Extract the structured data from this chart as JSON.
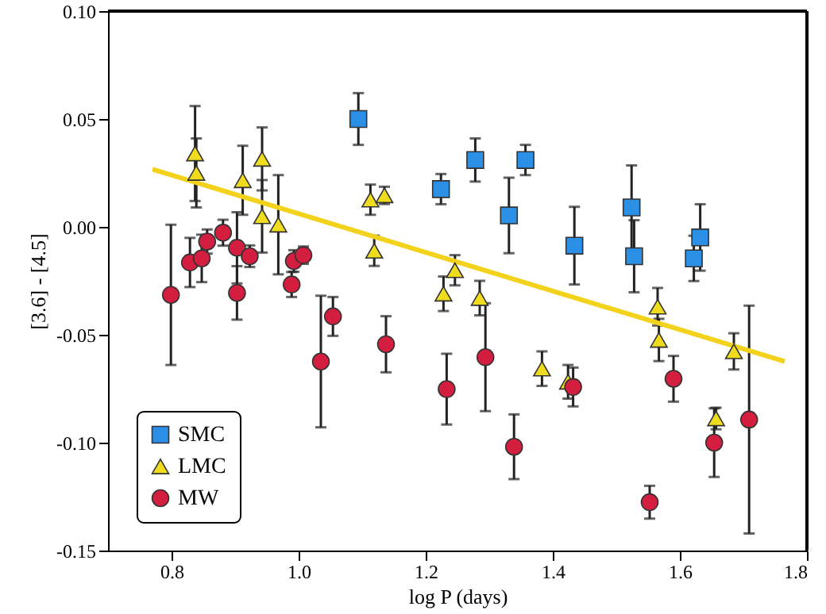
{
  "chart_data": {
    "type": "scatter",
    "xlabel": "log P (days)",
    "ylabel": "[3.6] - [4.5]",
    "xlim": [
      0.7,
      1.8
    ],
    "ylim": [
      -0.15,
      0.1
    ],
    "xticks": [
      {
        "value": 0.8,
        "label": "0.8"
      },
      {
        "value": 1.0,
        "label": "1.0"
      },
      {
        "value": 1.2,
        "label": "1.2"
      },
      {
        "value": 1.4,
        "label": "1.4"
      },
      {
        "value": 1.6,
        "label": "1.6"
      },
      {
        "value": 1.8,
        "label": "1.8"
      }
    ],
    "yticks": [
      {
        "value": -0.15,
        "label": "-0.15"
      },
      {
        "value": -0.1,
        "label": "-0.10"
      },
      {
        "value": -0.05,
        "label": "-0.05"
      },
      {
        "value": 0,
        "label": "0.00"
      },
      {
        "value": 0.05,
        "label": "0.05"
      },
      {
        "value": 0.1,
        "label": "0.10"
      }
    ],
    "grid": false,
    "legend": "bottom left",
    "series": [
      {
        "name": "SMC",
        "marker": "square",
        "color": "#2b8fe6",
        "x": [
          1.094,
          1.224,
          1.278,
          1.357,
          1.331,
          1.434,
          1.524,
          1.528,
          1.622,
          1.632
        ],
        "values": [
          0.05,
          0.0175,
          0.031,
          0.031,
          0.0053,
          -0.0087,
          0.009,
          -0.0136,
          -0.0146,
          -0.0049
        ],
        "errors": [
          0.012,
          0.007,
          0.01,
          0.007,
          0.0175,
          0.018,
          0.0195,
          0.0167,
          0.0105,
          0.0154
        ]
      },
      {
        "name": "LMC",
        "marker": "triangle",
        "color": "#f0dc1e",
        "x": [
          0.837,
          0.839,
          0.912,
          0.9425,
          0.9425,
          0.968,
          1.113,
          1.135,
          1.119,
          1.246,
          1.228,
          1.285,
          1.383,
          1.424,
          1.565,
          1.567,
          1.685,
          1.657
        ],
        "values": [
          0.034,
          0.025,
          0.0216,
          0.0315,
          0.0049,
          0.001,
          0.0126,
          0.0146,
          -0.0111,
          -0.0201,
          -0.031,
          -0.033,
          -0.0657,
          -0.0718,
          -0.037,
          -0.0524,
          -0.0577,
          -0.0888
        ],
        "errors": [
          0.022,
          0.016,
          0.016,
          0.0146,
          0.0168,
          0.023,
          0.007,
          0.004,
          0.007,
          0.007,
          0.008,
          0.008,
          0.008,
          0.0078,
          0.0087,
          0.0098,
          0.0084,
          0.005
        ]
      },
      {
        "name": "MW",
        "marker": "circle",
        "color": "#d41e40",
        "x": [
          0.799,
          0.829,
          0.8475,
          0.856,
          0.881,
          0.903,
          0.903,
          0.923,
          0.9925,
          1.0075,
          0.989,
          1.035,
          1.054,
          1.1375,
          1.233,
          1.294,
          1.339,
          1.432,
          1.5525,
          1.59,
          1.654,
          1.709
        ],
        "values": [
          -0.0315,
          -0.0165,
          -0.0146,
          -0.0068,
          -0.0027,
          -0.0097,
          -0.0306,
          -0.0136,
          -0.0158,
          -0.0131,
          -0.0267,
          -0.0624,
          -0.0415,
          -0.0544,
          -0.0752,
          -0.0604,
          -0.1019,
          -0.0742,
          -0.1276,
          -0.0704,
          -0.1,
          -0.0893
        ],
        "errors": [
          0.0325,
          0.0114,
          0.011,
          0.0056,
          0.006,
          0.0165,
          0.0124,
          0.005,
          0.005,
          0.004,
          0.0058,
          0.0305,
          0.009,
          0.013,
          0.0164,
          0.025,
          0.015,
          0.009,
          0.0076,
          0.0106,
          0.0159,
          0.0528
        ]
      },
      {
        "type": "line",
        "color": "#f2d21b",
        "x": [
          0.77,
          1.765
        ],
        "values": [
          0.0267,
          -0.0624
        ]
      }
    ]
  }
}
